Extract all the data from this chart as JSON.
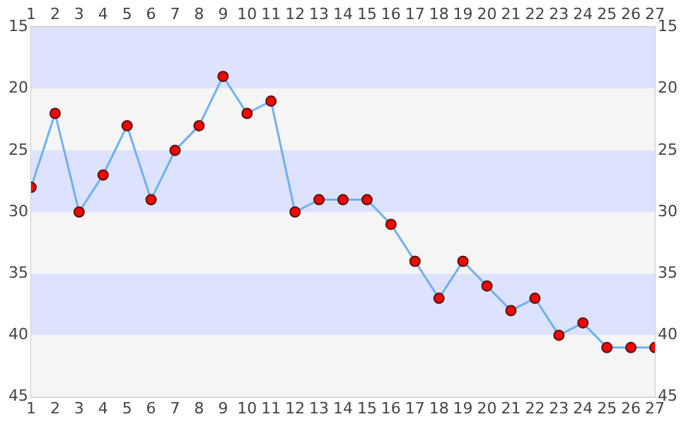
{
  "chart_data": {
    "type": "line",
    "x": [
      1,
      2,
      3,
      4,
      5,
      6,
      7,
      8,
      9,
      10,
      11,
      12,
      13,
      14,
      15,
      16,
      17,
      18,
      19,
      20,
      21,
      22,
      23,
      24,
      25,
      26,
      27
    ],
    "series": [
      {
        "color": "#70b0f0",
        "colors": [
          "#ff0000",
          "#ff0000",
          "#ff0000",
          "#ff0000",
          "#ff0000",
          "#ff0000",
          "#ff0000",
          "#ff0000",
          "#ff0000",
          "#ff0000",
          "#ff0000",
          "#ff0000",
          "#ff0000",
          "#ff0000",
          "#ff0000",
          "#ff0000",
          "#ff0000",
          "#ff0000",
          "#ff0000",
          "#ff0000",
          "#ff0000",
          "#ff0000",
          "#ff0000",
          "#ff0000",
          "#ff0000",
          "#ff0000",
          "#ff0000"
        ],
        "values": [
          28,
          22,
          30,
          27,
          23,
          29,
          25,
          23,
          19,
          22,
          21,
          30,
          29,
          29,
          29,
          31,
          34,
          37,
          34,
          36,
          38,
          37,
          40,
          39,
          41,
          41,
          41
        ]
      }
    ],
    "xlim": [
      1,
      27
    ],
    "xticks": [
      1,
      2,
      3,
      4,
      5,
      6,
      7,
      8,
      9,
      10,
      11,
      12,
      13,
      14,
      15,
      16,
      17,
      18,
      19,
      20,
      21,
      22,
      23,
      24,
      25,
      26,
      27
    ],
    "x2lim": [
      1,
      27
    ],
    "x2ticks": [
      1,
      2,
      3,
      4,
      5,
      6,
      7,
      8,
      9,
      10,
      11,
      12,
      13,
      14,
      15,
      16,
      17,
      18,
      19,
      20,
      21,
      22,
      23,
      24,
      25,
      26,
      27
    ],
    "ylim": [
      45,
      15
    ],
    "yticks": [
      15,
      20,
      25,
      30,
      35,
      40,
      45
    ],
    "y2lim": [
      45,
      15
    ],
    "y2ticks": [
      15,
      20,
      25,
      30,
      35,
      40,
      45
    ],
    "bands": [
      {
        "axis": "y",
        "from": 15,
        "to": 20,
        "color": "#dde3ff"
      },
      {
        "axis": "y",
        "from": 20,
        "to": 25,
        "color": "#f5f5f5"
      },
      {
        "axis": "y",
        "from": 25,
        "to": 30,
        "color": "#dde3ff"
      },
      {
        "axis": "y",
        "from": 30,
        "to": 35,
        "color": "#f5f5f5"
      },
      {
        "axis": "y",
        "from": 35,
        "to": 40,
        "color": "#dde3ff"
      },
      {
        "axis": "y",
        "from": 40,
        "to": 45,
        "color": "#f5f5f5"
      }
    ],
    "marker": "circle",
    "line_style": "solid",
    "grid": false,
    "legend": false
  }
}
